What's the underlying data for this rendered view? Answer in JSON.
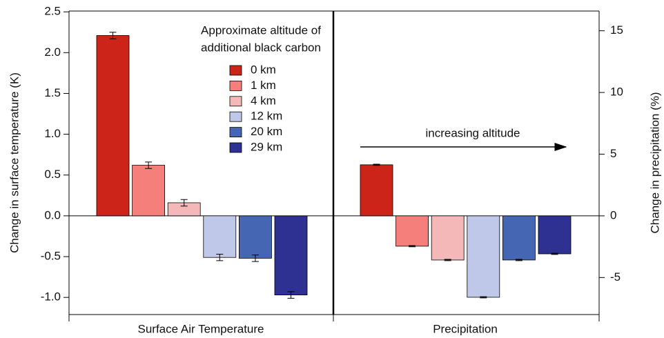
{
  "chart_data": [
    {
      "type": "bar",
      "categories": [
        "Surface Air Temperature"
      ],
      "ylabel": "Change in surface temperature (K)",
      "ylim": [
        -1.21,
        2.51
      ],
      "yticks": [
        2.5,
        {
          "value": 2,
          "label": "2.0"
        },
        1.5,
        {
          "value": 1,
          "label": "1.0"
        },
        0.5,
        {
          "value": 0,
          "label": "0.0"
        },
        -0.5,
        {
          "value": -1,
          "label": "-1.0"
        }
      ],
      "legend_title": [
        "Approximate altitude of",
        "additional black carbon"
      ],
      "series": [
        {
          "name": "0 km",
          "color": "#cc2418",
          "values": [
            2.21
          ],
          "errors": [
            0.04
          ]
        },
        {
          "name": "1 km",
          "color": "#f47f7b",
          "values": [
            0.62
          ],
          "errors": [
            0.04
          ]
        },
        {
          "name": "4 km",
          "color": "#f5b8b8",
          "values": [
            0.16
          ],
          "errors": [
            0.04
          ]
        },
        {
          "name": "12 km",
          "color": "#c0c8ea",
          "values": [
            -0.51
          ],
          "errors": [
            0.04
          ]
        },
        {
          "name": "20 km",
          "color": "#4466b3",
          "values": [
            -0.52
          ],
          "errors": [
            0.04
          ]
        },
        {
          "name": "29 km",
          "color": "#2e3192",
          "values": [
            -0.97
          ],
          "errors": [
            0.04
          ]
        }
      ]
    },
    {
      "type": "bar",
      "categories": [
        "Precipitation"
      ],
      "y2label": "Change in precipitation (%)",
      "y2lim": [
        -8.0,
        16.6
      ],
      "y2ticks": [
        15,
        10,
        5,
        0,
        -5
      ],
      "annotation": "increasing altitude",
      "series": [
        {
          "color": "#cc2418",
          "axis": "y2",
          "values": [
            4.14
          ],
          "errors": [
            0.05
          ]
        },
        {
          "color": "#f47f7b",
          "axis": "y2",
          "values": [
            -2.46
          ],
          "errors": [
            0.05
          ]
        },
        {
          "color": "#f5b8b8",
          "axis": "y2",
          "values": [
            -3.58
          ],
          "errors": [
            0.05
          ]
        },
        {
          "color": "#c0c8ea",
          "axis": "y2",
          "values": [
            -6.6
          ],
          "errors": [
            0.05
          ]
        },
        {
          "color": "#4466b3",
          "axis": "y2",
          "values": [
            -3.58
          ],
          "errors": [
            0.05
          ]
        },
        {
          "color": "#2e3192",
          "axis": "y2",
          "values": [
            -3.08
          ],
          "errors": [
            0.05
          ]
        }
      ]
    }
  ]
}
